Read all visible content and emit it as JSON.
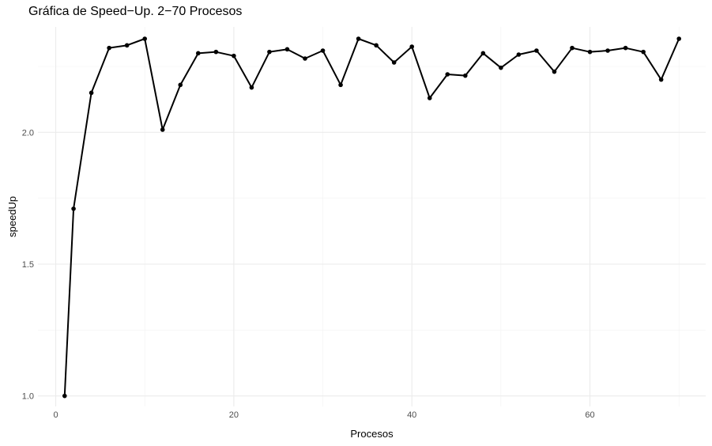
{
  "chart_data": {
    "type": "line",
    "title": "Gráfica de Speed−Up.  2−70 Procesos",
    "xlabel": "Procesos",
    "ylabel": "speedUp",
    "xlim": [
      -2,
      73
    ],
    "ylim": [
      0.96,
      2.4
    ],
    "x_ticks": [
      0,
      20,
      40,
      60
    ],
    "x_tick_labels": [
      "0",
      "20",
      "40",
      "60"
    ],
    "y_ticks": [
      1.0,
      1.5,
      2.0
    ],
    "y_tick_labels": [
      "1.0",
      "1.5",
      "2.0"
    ],
    "grid": true,
    "line_color": "#000000",
    "series": [
      {
        "x": [
          1,
          2,
          4,
          6,
          8,
          10,
          12,
          14,
          16,
          18,
          20,
          22,
          24,
          26,
          28,
          30,
          32,
          34,
          36,
          38,
          40,
          42,
          44,
          46,
          48,
          50,
          52,
          54,
          56,
          58,
          60,
          62,
          64,
          66,
          68,
          70
        ],
        "y": [
          1.0,
          1.71,
          2.15,
          2.32,
          2.33,
          2.355,
          2.01,
          2.18,
          2.3,
          2.305,
          2.29,
          2.17,
          2.305,
          2.315,
          2.28,
          2.31,
          2.18,
          2.355,
          2.33,
          2.265,
          2.325,
          2.13,
          2.22,
          2.215,
          2.3,
          2.245,
          2.295,
          2.31,
          2.23,
          2.32,
          2.305,
          2.31,
          2.32,
          2.305,
          2.2,
          2.355
        ]
      }
    ]
  }
}
